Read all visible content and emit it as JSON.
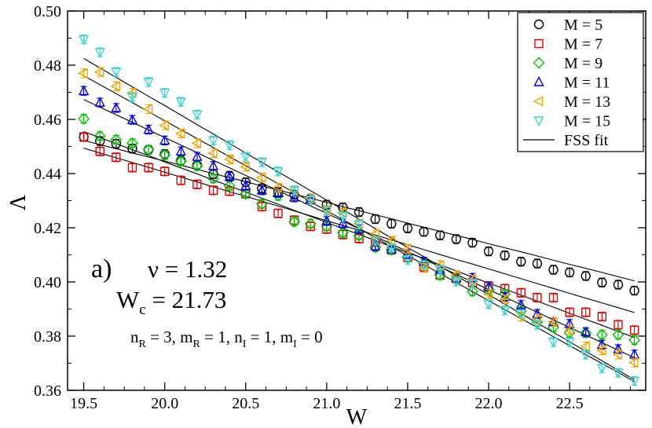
{
  "chart_data": {
    "type": "scatter",
    "title": "",
    "xlabel": "W",
    "ylabel": "Λ",
    "xlim": [
      19.4,
      22.97
    ],
    "ylim": [
      0.36,
      0.5
    ],
    "grid": false,
    "legend_position": "top-right",
    "x_ticks": [
      19.5,
      20.0,
      20.5,
      21.0,
      21.5,
      22.0,
      22.5
    ],
    "x_tick_labels": [
      "19.5",
      "20.0",
      "20.5",
      "21.0",
      "21.5",
      "22.0",
      "22.5"
    ],
    "y_ticks": [
      0.36,
      0.38,
      0.4,
      0.42,
      0.44,
      0.46,
      0.48,
      0.5
    ],
    "y_tick_labels": [
      "0.36",
      "0.38",
      "0.40",
      "0.42",
      "0.44",
      "0.46",
      "0.48",
      "0.50"
    ],
    "x": [
      19.5,
      19.6,
      19.7,
      19.8,
      19.9,
      20.0,
      20.1,
      20.2,
      20.3,
      20.4,
      20.5,
      20.6,
      20.7,
      20.8,
      20.9,
      21.0,
      21.1,
      21.2,
      21.3,
      21.4,
      21.5,
      21.6,
      21.7,
      21.8,
      21.9,
      22.0,
      22.1,
      22.2,
      22.3,
      22.4,
      22.5,
      22.6,
      22.7,
      22.8,
      22.9
    ],
    "series": [
      {
        "name": "M = 5",
        "marker": "circle",
        "color": "#000000",
        "values": [
          0.4535,
          0.452,
          0.451,
          0.4492,
          0.4488,
          0.4472,
          0.4448,
          0.4432,
          0.4398,
          0.4392,
          0.4368,
          0.4345,
          0.4332,
          0.4322,
          0.4308,
          0.4285,
          0.4275,
          0.4258,
          0.4232,
          0.4215,
          0.4198,
          0.4185,
          0.4172,
          0.4158,
          0.4145,
          0.4113,
          0.4098,
          0.4075,
          0.4068,
          0.4045,
          0.4035,
          0.4022,
          0.3998,
          0.399,
          0.3968
        ],
        "fit": [
          0.4522,
          0.4507,
          0.4492,
          0.4476,
          0.4461,
          0.4446,
          0.4431,
          0.4415,
          0.44,
          0.4385,
          0.437,
          0.4354,
          0.4339,
          0.4324,
          0.4309,
          0.4294,
          0.4278,
          0.4263,
          0.4248,
          0.4233,
          0.4217,
          0.4202,
          0.4187,
          0.4172,
          0.4157,
          0.4141,
          0.4126,
          0.4111,
          0.4096,
          0.408,
          0.4065,
          0.405,
          0.4035,
          0.4019,
          0.4004
        ]
      },
      {
        "name": "M = 7",
        "marker": "square",
        "color": "#e00000",
        "values": [
          0.4535,
          0.4482,
          0.446,
          0.4422,
          0.4422,
          0.4408,
          0.4375,
          0.436,
          0.4338,
          0.4335,
          0.4325,
          0.4278,
          0.4253,
          0.4228,
          0.4205,
          0.4195,
          0.4175,
          0.416,
          0.4148,
          0.4118,
          0.409,
          0.4055,
          0.4025,
          0.4012,
          0.3998,
          0.3985,
          0.3975,
          0.396,
          0.3942,
          0.3942,
          0.3888,
          0.3888,
          0.3872,
          0.3842,
          0.3822
        ],
        "fit": [
          0.4494,
          0.4476,
          0.4458,
          0.4441,
          0.4423,
          0.4405,
          0.4387,
          0.4369,
          0.4351,
          0.4333,
          0.4316,
          0.4298,
          0.428,
          0.4262,
          0.4244,
          0.4226,
          0.4208,
          0.4191,
          0.4173,
          0.4155,
          0.4137,
          0.4119,
          0.4101,
          0.4083,
          0.4066,
          0.4048,
          0.403,
          0.4012,
          0.3994,
          0.3976,
          0.3958,
          0.394,
          0.3923,
          0.3905,
          0.3887
        ]
      },
      {
        "name": "M = 9",
        "marker": "diamond",
        "color": "#00c000",
        "values": [
          0.4602,
          0.4538,
          0.4525,
          0.4512,
          0.4488,
          0.4468,
          0.4445,
          0.4428,
          0.4382,
          0.4355,
          0.4325,
          0.4288,
          0.4318,
          0.4222,
          0.4215,
          0.4205,
          0.4182,
          0.4172,
          0.4128,
          0.4118,
          0.4092,
          0.4068,
          0.4025,
          0.4012,
          0.3965,
          0.3972,
          0.3955,
          0.3892,
          0.3852,
          0.3832,
          0.3812,
          0.3812,
          0.3805,
          0.3805,
          0.3785
        ],
        "fit": [
          0.4555,
          0.4533,
          0.451,
          0.4488,
          0.4466,
          0.4443,
          0.4421,
          0.4399,
          0.4376,
          0.4354,
          0.4332,
          0.4309,
          0.4287,
          0.4264,
          0.4242,
          0.422,
          0.4197,
          0.4175,
          0.4153,
          0.413,
          0.4108,
          0.4086,
          0.4063,
          0.4041,
          0.4018,
          0.3996,
          0.3974,
          0.3951,
          0.3929,
          0.3907,
          0.3884,
          0.3862,
          0.384,
          0.3817,
          0.3795
        ]
      },
      {
        "name": "M = 11",
        "marker": "triangle-up",
        "color": "#0000e0",
        "values": [
          0.4705,
          0.4662,
          0.4642,
          0.4598,
          0.4562,
          0.4522,
          0.4482,
          0.4462,
          0.4428,
          0.4388,
          0.4355,
          0.4338,
          0.4328,
          0.4312,
          0.4305,
          0.4225,
          0.4215,
          0.4195,
          0.4132,
          0.4122,
          0.4102,
          0.4075,
          0.4045,
          0.4015,
          0.4015,
          0.3982,
          0.3945,
          0.3915,
          0.3882,
          0.3852,
          0.3845,
          0.3815,
          0.3768,
          0.3752,
          0.3732
        ],
        "fit": [
          0.4673,
          0.4645,
          0.4617,
          0.4589,
          0.4561,
          0.4533,
          0.4505,
          0.4477,
          0.4449,
          0.4421,
          0.4393,
          0.4365,
          0.4337,
          0.4309,
          0.4281,
          0.4253,
          0.4225,
          0.4196,
          0.4168,
          0.414,
          0.4112,
          0.4084,
          0.4056,
          0.4028,
          0.4,
          0.3972,
          0.3944,
          0.3916,
          0.3888,
          0.386,
          0.3832,
          0.3804,
          0.3776,
          0.3748,
          0.372
        ]
      },
      {
        "name": "M = 13",
        "marker": "triangle-left",
        "color": "#f0a000",
        "values": [
          0.477,
          0.4775,
          0.4722,
          0.4698,
          0.4638,
          0.4578,
          0.4548,
          0.4512,
          0.4475,
          0.4452,
          0.4425,
          0.4385,
          0.4348,
          0.4338,
          0.4308,
          0.4265,
          0.4255,
          0.4215,
          0.4178,
          0.4152,
          0.4122,
          0.4052,
          0.4062,
          0.4025,
          0.4008,
          0.3955,
          0.3935,
          0.3872,
          0.3862,
          0.3852,
          0.3822,
          0.3762,
          0.3748,
          0.3732,
          0.3702
        ],
        "fit": [
          0.4761,
          0.4728,
          0.4695,
          0.4662,
          0.4628,
          0.4595,
          0.4562,
          0.4529,
          0.4496,
          0.4462,
          0.4429,
          0.4396,
          0.4363,
          0.433,
          0.4296,
          0.4263,
          0.423,
          0.4197,
          0.4164,
          0.413,
          0.4097,
          0.4064,
          0.4031,
          0.3998,
          0.3964,
          0.3931,
          0.3898,
          0.3865,
          0.3832,
          0.3798,
          0.3765,
          0.3732,
          0.3699,
          0.3666,
          0.3632
        ]
      },
      {
        "name": "M = 15",
        "marker": "triangle-down",
        "color": "#40d0d0",
        "values": [
          0.4895,
          0.4848,
          0.4775,
          0.4682,
          0.4738,
          0.4698,
          0.4665,
          0.4618,
          0.4522,
          0.4505,
          0.4462,
          0.4442,
          0.4408,
          0.4338,
          0.4302,
          0.4262,
          0.4242,
          0.4212,
          0.4152,
          0.4125,
          0.4082,
          0.4062,
          0.4045,
          0.4002,
          0.3995,
          0.3918,
          0.3895,
          0.3882,
          0.3842,
          0.3778,
          0.3778,
          0.3732,
          0.3682,
          0.3665,
          0.3635
        ],
        "fit": [
          0.4825,
          0.479,
          0.4755,
          0.472,
          0.4685,
          0.4651,
          0.4616,
          0.4581,
          0.4546,
          0.4511,
          0.4476,
          0.4441,
          0.4406,
          0.4372,
          0.4337,
          0.4302,
          0.4267,
          0.4232,
          0.4197,
          0.4162,
          0.4127,
          0.4093,
          0.4058,
          0.4023,
          0.3988,
          0.3953,
          0.3918,
          0.3883,
          0.3848,
          0.3814,
          0.3779,
          0.3744,
          0.3709,
          0.3674,
          0.3639
        ]
      }
    ],
    "fit_legend_label": "FSS fit",
    "error_bar_halfwidth": 0.0016,
    "annotations": {
      "panel_label": "a)",
      "nu_symbol": "ν",
      "nu_text": " = 1.32",
      "wc_main": "W",
      "wc_sub": "c",
      "wc_text": " = 21.73",
      "params": [
        {
          "main": "n",
          "sub": "R",
          "text": " = 3, "
        },
        {
          "main": "m",
          "sub": "R",
          "text": " = 1, "
        },
        {
          "main": "n",
          "sub": "I",
          "text": " = 1, "
        },
        {
          "main": "m",
          "sub": "I",
          "text": " = 0"
        }
      ]
    }
  }
}
